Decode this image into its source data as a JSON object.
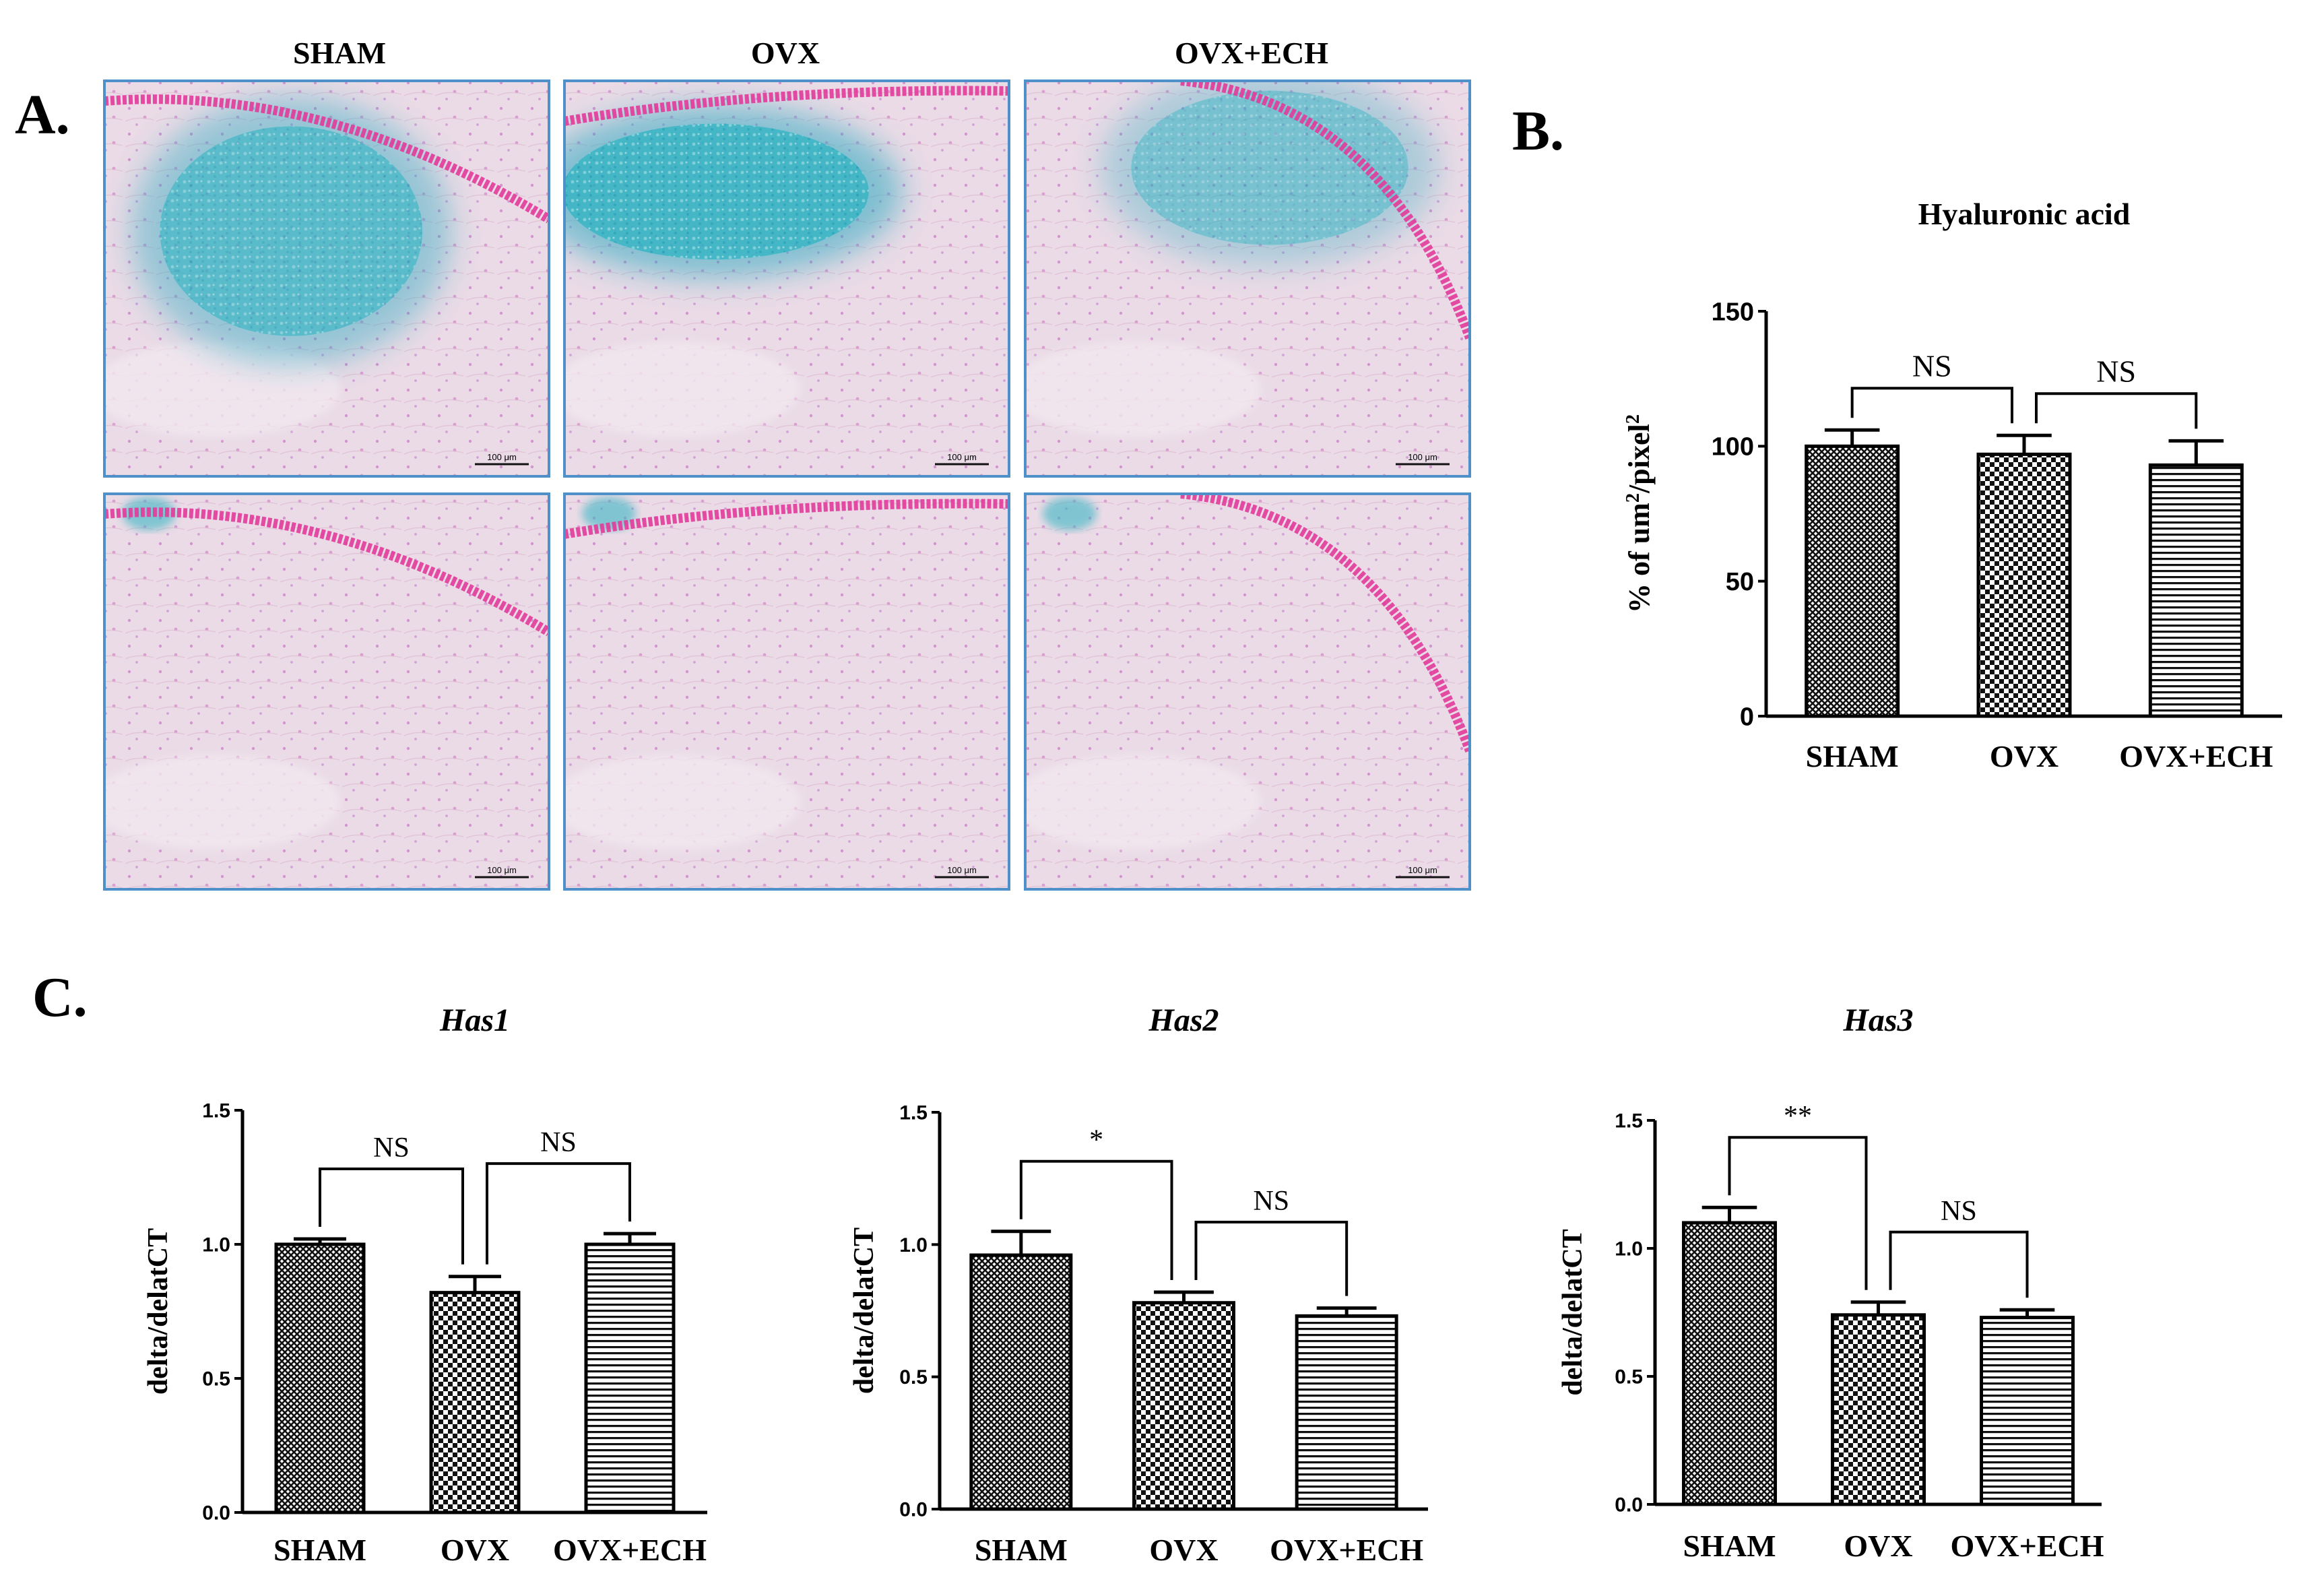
{
  "panel_labels": {
    "a": "A.",
    "b": "B.",
    "c": "C."
  },
  "histology": {
    "columns": [
      "SHAM",
      "OVX",
      "OVX+ECH"
    ],
    "scale_bar_label": "100 μm",
    "colors": {
      "frame": "#4f90c8",
      "tissue": "#eadbe6",
      "alcian": "#3bb6c4",
      "alcian_dark": "#1aa6bd",
      "nuclear": "#e23a9a"
    },
    "panels": [
      {
        "row": 1,
        "col": "SHAM",
        "alcian_intensity": 0.75
      },
      {
        "row": 1,
        "col": "OVX",
        "alcian_intensity": 0.95
      },
      {
        "row": 1,
        "col": "OVX+ECH",
        "alcian_intensity": 0.55
      },
      {
        "row": 2,
        "col": "SHAM",
        "alcian_intensity": 0.05
      },
      {
        "row": 2,
        "col": "OVX",
        "alcian_intensity": 0.03
      },
      {
        "row": 2,
        "col": "OVX+ECH",
        "alcian_intensity": 0.03
      }
    ]
  },
  "chart_data": [
    {
      "id": "B",
      "type": "bar",
      "title": "Hyaluronic acid",
      "ylabel": "% of um²/pixel²",
      "ylabel_parts": [
        "% of um",
        "2",
        "/pixel",
        "2"
      ],
      "xlabel": "",
      "categories": [
        "SHAM",
        "OVX",
        "OVX+ECH"
      ],
      "values": [
        100,
        97,
        93
      ],
      "errors": [
        6,
        7,
        9
      ],
      "patterns": [
        "crosshatch",
        "checker",
        "horizontal"
      ],
      "ylim": [
        0,
        150
      ],
      "yticks": [
        0,
        50,
        100,
        150
      ],
      "ytick_labels": [
        "0",
        "50",
        "100",
        "150"
      ],
      "annotations": [
        {
          "from": 0,
          "to": 1,
          "label": "NS"
        },
        {
          "from": 1,
          "to": 2,
          "label": "NS"
        }
      ]
    },
    {
      "id": "C-Has1",
      "type": "bar",
      "title": "Has1",
      "ylabel": "delta/delatCT",
      "xlabel": "",
      "categories": [
        "SHAM",
        "OVX",
        "OVX+ECH"
      ],
      "values": [
        1.0,
        0.82,
        1.0
      ],
      "errors": [
        0.02,
        0.06,
        0.04
      ],
      "patterns": [
        "crosshatch",
        "checker",
        "horizontal"
      ],
      "ylim": [
        0,
        1.5
      ],
      "yticks": [
        0,
        0.5,
        1.0,
        1.5
      ],
      "ytick_labels": [
        "0.0",
        "0.5",
        "1.0",
        "1.5"
      ],
      "annotations": [
        {
          "from": 0,
          "to": 1,
          "label": "NS"
        },
        {
          "from": 1,
          "to": 2,
          "label": "NS"
        }
      ]
    },
    {
      "id": "C-Has2",
      "type": "bar",
      "title": "Has2",
      "ylabel": "delta/delatCT",
      "xlabel": "",
      "categories": [
        "SHAM",
        "OVX",
        "OVX+ECH"
      ],
      "values": [
        0.96,
        0.78,
        0.73
      ],
      "errors": [
        0.09,
        0.04,
        0.03
      ],
      "patterns": [
        "crosshatch",
        "checker",
        "horizontal"
      ],
      "ylim": [
        0,
        1.5
      ],
      "yticks": [
        0,
        0.5,
        1.0,
        1.5
      ],
      "ytick_labels": [
        "0.0",
        "0.5",
        "1.0",
        "1.5"
      ],
      "annotations": [
        {
          "from": 0,
          "to": 1,
          "label": "*"
        },
        {
          "from": 1,
          "to": 2,
          "label": "NS"
        }
      ]
    },
    {
      "id": "C-Has3",
      "type": "bar",
      "title": "Has3",
      "ylabel": "delta/delatCT",
      "xlabel": "",
      "categories": [
        "SHAM",
        "OVX",
        "OVX+ECH"
      ],
      "values": [
        1.1,
        0.74,
        0.73
      ],
      "errors": [
        0.06,
        0.05,
        0.03
      ],
      "patterns": [
        "crosshatch",
        "checker",
        "horizontal"
      ],
      "ylim": [
        0,
        1.5
      ],
      "yticks": [
        0,
        0.5,
        1.0,
        1.5
      ],
      "ytick_labels": [
        "0.0",
        "0.5",
        "1.0",
        "1.5"
      ],
      "annotations": [
        {
          "from": 0,
          "to": 1,
          "label": "**"
        },
        {
          "from": 1,
          "to": 2,
          "label": "NS"
        }
      ]
    }
  ]
}
